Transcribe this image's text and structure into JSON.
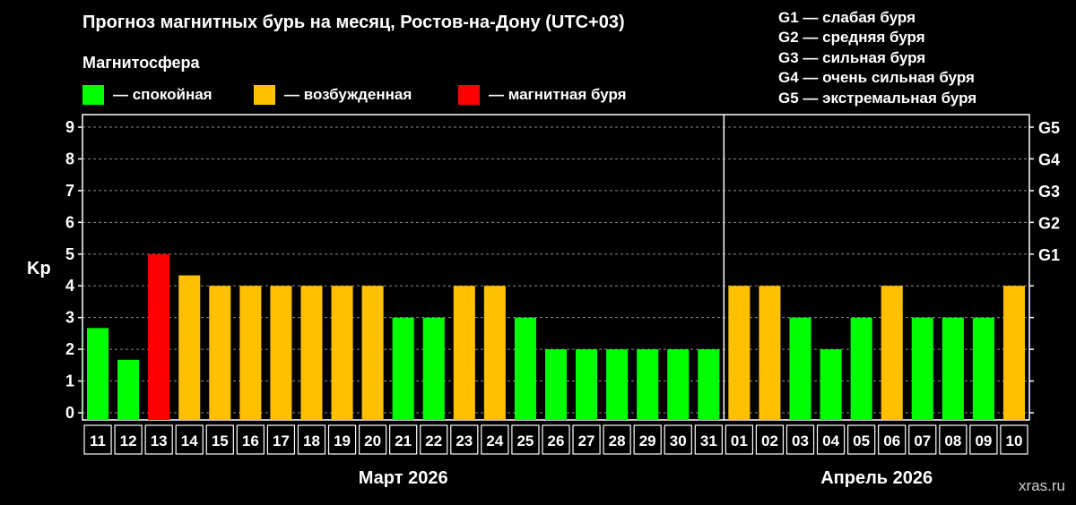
{
  "chart_data": {
    "type": "bar",
    "title": "Прогноз магнитных бурь на месяц, Ростов-на-Дону (UTC+03)",
    "ylabel": "Kp",
    "ylim": [
      0,
      9
    ],
    "yticks": [
      "0",
      "1",
      "2",
      "3",
      "4",
      "5",
      "6",
      "7",
      "8",
      "9"
    ],
    "grid": true,
    "legend": {
      "title": "Магнитосфера",
      "placement": "top-left",
      "items": [
        {
          "label": "— спокойная",
          "color": "#00ff00"
        },
        {
          "label": "— возбужденная",
          "color": "#ffc000"
        },
        {
          "label": "— магнитная буря",
          "color": "#ff0000"
        }
      ]
    },
    "storm_scale": {
      "placement": "top-right",
      "items": [
        "G1 — слабая буря",
        "G2 — средняя буря",
        "G3 — сильная буря",
        "G4 — очень сильная буря",
        "G5 — экстремальная буря"
      ],
      "axis_labels": [
        {
          "label": "G1",
          "kp": 5
        },
        {
          "label": "G2",
          "kp": 6
        },
        {
          "label": "G3",
          "kp": 7
        },
        {
          "label": "G4",
          "kp": 8
        },
        {
          "label": "G5",
          "kp": 9
        }
      ]
    },
    "months": [
      {
        "label": "Март 2026",
        "first_index": 0,
        "last_index": 20
      },
      {
        "label": "Апрель 2026",
        "first_index": 21,
        "last_index": 30
      }
    ],
    "categories": [
      "11",
      "12",
      "13",
      "14",
      "15",
      "16",
      "17",
      "18",
      "19",
      "20",
      "21",
      "22",
      "23",
      "24",
      "25",
      "26",
      "27",
      "28",
      "29",
      "30",
      "31",
      "01",
      "02",
      "03",
      "04",
      "05",
      "06",
      "07",
      "08",
      "09",
      "10"
    ],
    "values": [
      2.67,
      1.67,
      5,
      4.33,
      4,
      4,
      4,
      4,
      4,
      4,
      3,
      3,
      4,
      4,
      3,
      2,
      2,
      2,
      2,
      2,
      2,
      4,
      4,
      3,
      2,
      3,
      4,
      3,
      3,
      3,
      4
    ],
    "colors": {
      "quiet": "#00ff00",
      "excited": "#ffc000",
      "storm": "#ff0000"
    }
  },
  "watermark": "xras.ru"
}
